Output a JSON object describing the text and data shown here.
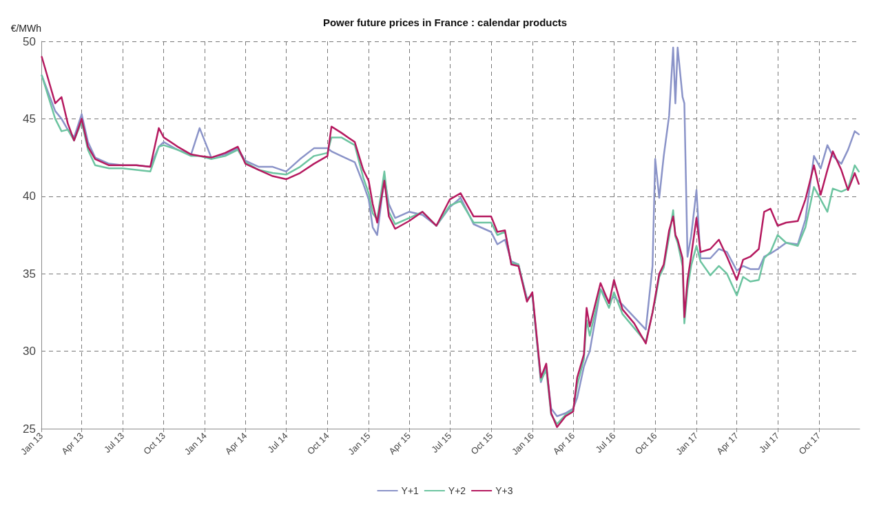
{
  "chart_data": {
    "type": "line",
    "title": "Power future prices in France : calendar products",
    "ylabel": "€/MWh",
    "x": [
      "2013-01-02",
      "2013-02-01",
      "2013-02-15",
      "2013-03-01",
      "2013-03-15",
      "2013-04-01",
      "2013-04-15",
      "2013-05-01",
      "2013-06-01",
      "2013-07-01",
      "2013-08-01",
      "2013-09-01",
      "2013-09-20",
      "2013-10-01",
      "2013-11-01",
      "2013-12-01",
      "2013-12-20",
      "2014-01-15",
      "2014-02-15",
      "2014-03-15",
      "2014-04-01",
      "2014-05-01",
      "2014-06-01",
      "2014-07-01",
      "2014-08-01",
      "2014-09-01",
      "2014-10-01",
      "2014-10-10",
      "2014-11-01",
      "2014-12-01",
      "2014-12-20",
      "2015-01-01",
      "2015-01-10",
      "2015-01-20",
      "2015-02-05",
      "2015-02-15",
      "2015-03-01",
      "2015-04-01",
      "2015-05-01",
      "2015-06-01",
      "2015-07-01",
      "2015-07-25",
      "2015-08-23",
      "2015-10-01",
      "2015-10-15",
      "2015-11-01",
      "2015-11-15",
      "2015-12-01",
      "2015-12-20",
      "2016-01-01",
      "2016-01-20",
      "2016-02-01",
      "2016-02-12",
      "2016-02-25",
      "2016-03-15",
      "2016-04-01",
      "2016-04-10",
      "2016-04-25",
      "2016-05-01",
      "2016-05-08",
      "2016-06-01",
      "2016-06-20",
      "2016-07-01",
      "2016-07-20",
      "2016-08-15",
      "2016-09-10",
      "2016-09-25",
      "2016-10-01",
      "2016-10-10",
      "2016-10-20",
      "2016-11-01",
      "2016-11-10",
      "2016-11-15",
      "2016-11-20",
      "2016-12-01",
      "2016-12-05",
      "2016-12-12",
      "2016-12-20",
      "2017-01-01",
      "2017-01-10",
      "2017-02-01",
      "2017-02-20",
      "2017-03-10",
      "2017-04-01",
      "2017-04-15",
      "2017-05-01",
      "2017-05-20",
      "2017-06-01",
      "2017-06-15",
      "2017-07-01",
      "2017-07-20",
      "2017-08-15",
      "2017-09-01",
      "2017-09-20",
      "2017-10-05",
      "2017-10-20",
      "2017-11-01",
      "2017-11-20",
      "2017-12-05",
      "2017-12-20",
      "2017-12-29"
    ],
    "series": [
      {
        "name": "Y+1",
        "color": "#8a93c8",
        "values": [
          47.8,
          45.5,
          45.0,
          44.3,
          43.8,
          45.3,
          43.5,
          42.5,
          42.1,
          42.0,
          42.0,
          41.9,
          43.2,
          43.5,
          43.0,
          42.7,
          44.4,
          42.5,
          42.7,
          43.1,
          42.3,
          41.9,
          41.9,
          41.6,
          42.4,
          43.1,
          43.1,
          42.9,
          42.6,
          42.2,
          40.8,
          39.8,
          38.0,
          37.5,
          41.2,
          39.5,
          38.6,
          39.0,
          38.8,
          38.1,
          39.3,
          39.9,
          38.2,
          37.7,
          36.9,
          37.2,
          35.8,
          35.6,
          33.4,
          33.6,
          28.0,
          29.0,
          26.3,
          25.8,
          26.0,
          26.3,
          27.0,
          29.0,
          29.5,
          30.0,
          34.0,
          33.2,
          33.5,
          33.0,
          32.2,
          31.4,
          35.5,
          42.4,
          39.9,
          42.6,
          45.2,
          49.6,
          46.0,
          49.6,
          46.4,
          46.0,
          36.1,
          37.4,
          40.4,
          36.0,
          36.0,
          36.6,
          36.4,
          35.2,
          35.5,
          35.3,
          35.3,
          36.1,
          36.3,
          36.6,
          37.0,
          36.9,
          38.5,
          42.6,
          41.8,
          43.3,
          42.6,
          42.1,
          43.0,
          44.2,
          44.0
        ]
      },
      {
        "name": "Y+2",
        "color": "#6cc4a0",
        "values": [
          47.8,
          45.0,
          44.2,
          44.3,
          43.6,
          44.8,
          43.0,
          42.0,
          41.8,
          41.8,
          41.7,
          41.6,
          43.2,
          43.3,
          43.0,
          42.6,
          42.6,
          42.4,
          42.6,
          43.0,
          42.2,
          41.7,
          41.5,
          41.4,
          41.9,
          42.6,
          42.8,
          43.8,
          43.8,
          43.3,
          41.2,
          40.2,
          38.9,
          38.5,
          41.6,
          39.0,
          38.2,
          38.6,
          39.0,
          38.1,
          39.4,
          39.7,
          38.3,
          38.3,
          37.5,
          37.7,
          35.7,
          35.6,
          33.3,
          33.7,
          28.1,
          28.8,
          25.9,
          25.3,
          25.9,
          26.2,
          27.8,
          29.5,
          32.0,
          31.0,
          34.0,
          32.8,
          33.8,
          32.4,
          31.5,
          30.6,
          32.5,
          33.3,
          34.8,
          35.4,
          37.4,
          39.1,
          37.4,
          37.0,
          35.5,
          31.8,
          34.0,
          35.5,
          36.8,
          35.8,
          34.9,
          35.5,
          35.0,
          33.6,
          34.8,
          34.5,
          34.6,
          36.0,
          36.4,
          37.5,
          37.0,
          36.8,
          38.0,
          40.6,
          39.8,
          39.0,
          40.5,
          40.3,
          40.5,
          42.0,
          41.6
        ]
      },
      {
        "name": "Y+3",
        "color": "#b5195f",
        "values": [
          49.0,
          46.0,
          46.4,
          44.7,
          43.6,
          45.0,
          43.2,
          42.4,
          42.0,
          42.0,
          42.0,
          41.9,
          44.4,
          43.8,
          43.2,
          42.7,
          42.6,
          42.5,
          42.8,
          43.2,
          42.1,
          41.7,
          41.3,
          41.1,
          41.5,
          42.1,
          42.6,
          44.5,
          44.1,
          43.5,
          41.7,
          41.0,
          39.5,
          38.3,
          41.0,
          38.7,
          37.9,
          38.4,
          39.0,
          38.1,
          39.8,
          40.2,
          38.7,
          38.7,
          37.7,
          37.8,
          35.6,
          35.5,
          33.2,
          33.8,
          28.3,
          29.2,
          26.0,
          25.1,
          25.8,
          26.1,
          28.3,
          29.8,
          32.8,
          31.6,
          34.4,
          33.1,
          34.6,
          32.7,
          31.8,
          30.5,
          32.5,
          33.5,
          35.0,
          35.6,
          37.8,
          38.7,
          37.5,
          37.2,
          36.0,
          32.2,
          34.6,
          36.1,
          38.6,
          36.4,
          36.6,
          37.2,
          36.1,
          34.6,
          35.9,
          36.1,
          36.6,
          39.0,
          39.2,
          38.1,
          38.3,
          38.4,
          39.8,
          42.0,
          40.1,
          41.7,
          42.9,
          41.7,
          40.4,
          41.5,
          40.8
        ]
      }
    ],
    "xlim": [
      "2013-01-01",
      "2017-12-31"
    ],
    "xticks": [
      {
        "value": "2013-01-01",
        "label": "Jan 13"
      },
      {
        "value": "2013-04-01",
        "label": "Apr 13"
      },
      {
        "value": "2013-07-01",
        "label": "Jul 13"
      },
      {
        "value": "2013-10-01",
        "label": "Oct 13"
      },
      {
        "value": "2014-01-01",
        "label": "Jan 14"
      },
      {
        "value": "2014-04-01",
        "label": "Apr 14"
      },
      {
        "value": "2014-07-01",
        "label": "Jul 14"
      },
      {
        "value": "2014-10-01",
        "label": "Oct 14"
      },
      {
        "value": "2015-01-01",
        "label": "Jan 15"
      },
      {
        "value": "2015-04-01",
        "label": "Apr 15"
      },
      {
        "value": "2015-07-01",
        "label": "Jul 15"
      },
      {
        "value": "2015-10-01",
        "label": "Oct 15"
      },
      {
        "value": "2016-01-01",
        "label": "Jan 16"
      },
      {
        "value": "2016-04-01",
        "label": "Apr 16"
      },
      {
        "value": "2016-07-01",
        "label": "Jul 16"
      },
      {
        "value": "2016-10-01",
        "label": "Oct 16"
      },
      {
        "value": "2017-01-01",
        "label": "Jan 17"
      },
      {
        "value": "2017-04-01",
        "label": "Apr 17"
      },
      {
        "value": "2017-07-01",
        "label": "Jul 17"
      },
      {
        "value": "2017-10-01",
        "label": "Oct 17"
      }
    ],
    "ylim": [
      25,
      50
    ],
    "yticks": [
      25,
      30,
      35,
      40,
      45,
      50
    ],
    "grid": true,
    "legend": "bottom",
    "marker": "none",
    "line_style": "solid"
  }
}
